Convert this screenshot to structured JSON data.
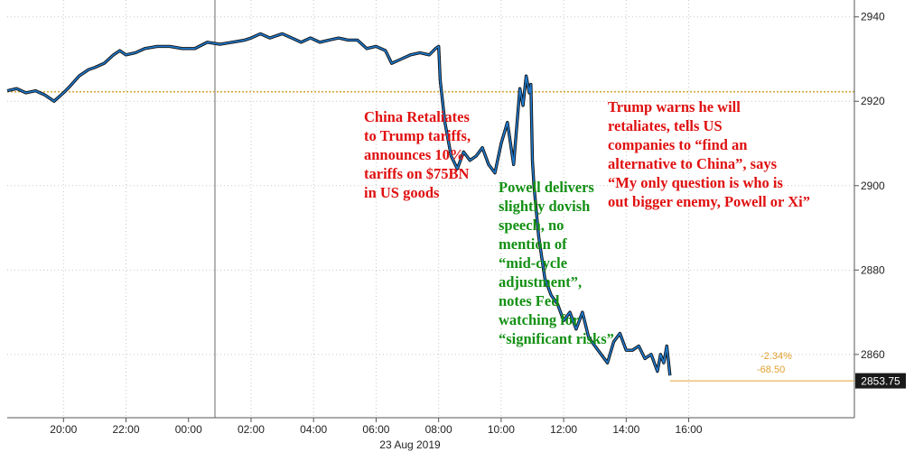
{
  "chart_data": {
    "type": "line",
    "title": "",
    "xlabel": "",
    "ylabel": "",
    "date_label": "23 Aug 2019",
    "ylim": [
      2845,
      2944
    ],
    "yticks": [
      2860,
      2880,
      2900,
      2920,
      2940
    ],
    "ytick_labels": [
      "2860",
      "2880",
      "2900",
      "2920",
      "2940"
    ],
    "xlim_hours": [
      -5.8,
      21.3
    ],
    "xticks": [
      {
        "h": -4,
        "label": "20:00"
      },
      {
        "h": -2,
        "label": "22:00"
      },
      {
        "h": 0,
        "label": "00:00"
      },
      {
        "h": 2,
        "label": "02:00"
      },
      {
        "h": 4,
        "label": "04:00"
      },
      {
        "h": 6,
        "label": "06:00"
      },
      {
        "h": 8,
        "label": "08:00"
      },
      {
        "h": 10,
        "label": "10:00"
      },
      {
        "h": 12,
        "label": "12:00"
      },
      {
        "h": 14,
        "label": "14:00"
      },
      {
        "h": 16,
        "label": "16:00"
      }
    ],
    "grid": true,
    "reference_level": 2922.25,
    "last_price": "2853.75",
    "last_value": 2853.75,
    "change_pct": "-2.34%",
    "change_pts": "-68.50",
    "series": [
      {
        "x": [
          -5.8,
          -5.5,
          -5.2,
          -4.9,
          -4.6,
          -4.3,
          -4.0,
          -3.8,
          -3.5,
          -3.2,
          -3.0,
          -2.7,
          -2.4,
          -2.2,
          -2.0,
          -1.7,
          -1.4,
          -1.0,
          -0.6,
          -0.2,
          0.2,
          0.6,
          1.0,
          1.4,
          1.8,
          2.0,
          2.3,
          2.6,
          3.0,
          3.3,
          3.6,
          3.9,
          4.2,
          4.5,
          4.8,
          5.1,
          5.4,
          5.7,
          6.0,
          6.3,
          6.5,
          6.8,
          7.1,
          7.4,
          7.7,
          7.9,
          8.0,
          8.05,
          8.2,
          8.4,
          8.6,
          8.8,
          9.0,
          9.2,
          9.4,
          9.6,
          9.8,
          10.0,
          10.2,
          10.4,
          10.6,
          10.7,
          10.8,
          10.9,
          10.95,
          11.0,
          11.05,
          11.2,
          11.4,
          11.6,
          11.8,
          12.0,
          12.2,
          12.4,
          12.6,
          12.8,
          13.0,
          13.2,
          13.4,
          13.6,
          13.8,
          14.0,
          14.2,
          14.4,
          14.6,
          14.8,
          15.0,
          15.1,
          15.2,
          15.3,
          15.4
        ],
        "y": [
          2922.5,
          2923,
          2922,
          2922.5,
          2921.5,
          2920,
          2922,
          2923.5,
          2926,
          2927.5,
          2928,
          2929,
          2931,
          2932,
          2931,
          2931.5,
          2932.5,
          2933,
          2933,
          2932.5,
          2932.5,
          2934,
          2933.5,
          2934,
          2934.5,
          2935,
          2936,
          2935,
          2936,
          2935,
          2934,
          2935,
          2934,
          2934.5,
          2935,
          2934.5,
          2934.5,
          2932.5,
          2933,
          2932,
          2929,
          2930,
          2931,
          2931.5,
          2931,
          2932.5,
          2933,
          2925,
          2915,
          2907,
          2904,
          2908,
          2906,
          2907,
          2909,
          2905,
          2903,
          2910,
          2915,
          2905,
          2923,
          2919,
          2926,
          2922,
          2924,
          2906,
          2900,
          2888,
          2878,
          2874,
          2872,
          2868,
          2870,
          2866,
          2870,
          2864,
          2862,
          2860,
          2858,
          2863,
          2865,
          2861,
          2861,
          2862,
          2859,
          2860,
          2856,
          2860,
          2858,
          2862,
          2855
        ]
      }
    ],
    "annotations": [
      {
        "color": "#e01010",
        "lines": [
          "China Retaliates",
          "to Trump tariffs,",
          "announces 10%",
          "tariffs on $75BN",
          "in US goods"
        ]
      },
      {
        "color": "#139013",
        "lines": [
          "Powell delivers",
          "slightly dovish",
          "speech, no",
          "mention of",
          "“mid-cycle",
          "adjustment”,",
          "notes Fed",
          "watching for",
          "“significant risks”"
        ]
      },
      {
        "color": "#e01010",
        "lines": [
          "Trump warns he will",
          "retaliates, tells US",
          "companies to “find an",
          "alternative to China”, says",
          "“My only question is who is",
          "out bigger enemy, Powell or Xi”"
        ]
      }
    ],
    "colors": {
      "line": "#1f7bd0",
      "line_dark": "#111111",
      "reference": "#d4a53a",
      "last_price_bg": "#1a1a1a",
      "change": "#e0a030",
      "grid": "#c8c8c8"
    }
  }
}
